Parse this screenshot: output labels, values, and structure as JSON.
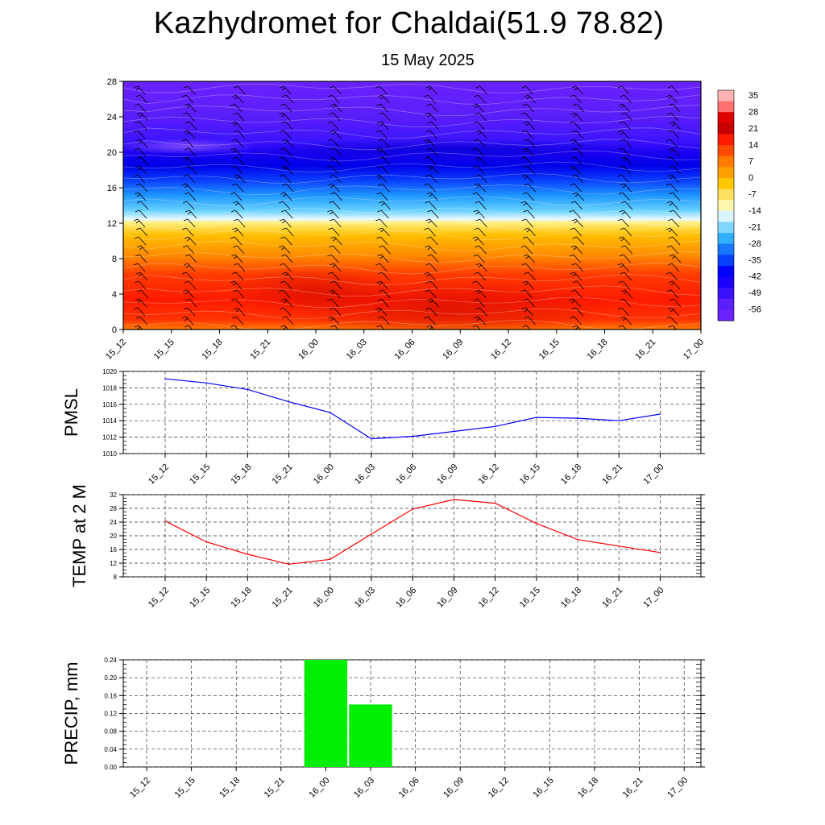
{
  "title": "Kazhydromet for Chaldai(51.9 78.82)",
  "subtitle": "15 May 2025",
  "time_labels": [
    "15_12",
    "15_15",
    "15_18",
    "15_21",
    "16_00",
    "16_03",
    "16_06",
    "16_09",
    "16_12",
    "16_15",
    "16_18",
    "16_21",
    "17_00"
  ],
  "colorbar_labels": [
    "35",
    "28",
    "21",
    "14",
    "7",
    "0",
    "-7",
    "-14",
    "-21",
    "-28",
    "-35",
    "-42",
    "-49",
    "-56"
  ],
  "chart_data": [
    {
      "type": "heatmap",
      "name": "upper-air",
      "y_ticks": [
        "0",
        "4",
        "8",
        "12",
        "16",
        "20",
        "24",
        "28"
      ],
      "ylim": [
        0,
        28
      ],
      "colorbar_ticks": [
        35,
        28,
        21,
        14,
        7,
        0,
        -7,
        -14,
        -21,
        -28,
        -35,
        -42,
        -49,
        -56
      ],
      "vertical_temperature_profile": [
        {
          "level": 0,
          "value": 18
        },
        {
          "level": 2,
          "value": 23
        },
        {
          "level": 4,
          "value": 22
        },
        {
          "level": 7,
          "value": 18
        },
        {
          "level": 10,
          "value": 9
        },
        {
          "level": 12.6,
          "value": -2
        },
        {
          "level": 13.5,
          "value": -10
        },
        {
          "level": 14.5,
          "value": -22
        },
        {
          "level": 16,
          "value": -30
        },
        {
          "level": 17.5,
          "value": -40
        },
        {
          "level": 19,
          "value": -55
        },
        {
          "level": 20,
          "value": -58
        },
        {
          "level": 22,
          "value": -54
        },
        {
          "level": 24,
          "value": -52
        },
        {
          "level": 28,
          "value": -50
        }
      ],
      "colors": {
        "warm": "#ff2a00",
        "neutral": "#fff7b0",
        "cold": "#6a1fff"
      }
    },
    {
      "type": "line",
      "ylabel": "PMSL",
      "categories": [
        "15_12",
        "15_15",
        "15_18",
        "15_21",
        "16_00",
        "16_03",
        "16_06",
        "16_09",
        "16_12",
        "16_15",
        "16_18",
        "16_21",
        "17_00"
      ],
      "values": [
        1019.1,
        1018.6,
        1017.8,
        1016.3,
        1015.0,
        1011.8,
        1012.1,
        1012.7,
        1013.3,
        1014.4,
        1014.3,
        1014.0,
        1014.8
      ],
      "ylim": [
        1010,
        1020
      ],
      "y_ticks": [
        "1010",
        "1012",
        "1014",
        "1016",
        "1018",
        "1020"
      ],
      "color": "#0000ff",
      "grid": true
    },
    {
      "type": "line",
      "ylabel": "TEMP at 2 M",
      "categories": [
        "15_12",
        "15_15",
        "15_18",
        "15_21",
        "16_00",
        "16_03",
        "16_06",
        "16_09",
        "16_12",
        "16_15",
        "16_18",
        "16_21",
        "17_00"
      ],
      "values": [
        24.3,
        18.2,
        14.6,
        11.7,
        13.1,
        20.5,
        27.8,
        30.6,
        29.5,
        23.6,
        18.9,
        17.0,
        15.1
      ],
      "ylim": [
        8,
        32
      ],
      "y_ticks": [
        "8",
        "12",
        "16",
        "20",
        "24",
        "28",
        "32"
      ],
      "color": "#ff0000",
      "grid": true
    },
    {
      "type": "bar",
      "ylabel": "PRECIP, mm",
      "categories": [
        "15_12",
        "15_15",
        "15_18",
        "15_21",
        "16_00",
        "16_03",
        "16_06",
        "16_09",
        "16_12",
        "16_15",
        "16_18",
        "16_21",
        "17_00"
      ],
      "values": [
        0,
        0,
        0,
        0,
        0.24,
        0.14,
        0,
        0,
        0,
        0,
        0,
        0,
        0
      ],
      "ylim": [
        0,
        0.24
      ],
      "y_ticks": [
        "0.00",
        "0.04",
        "0.08",
        "0.12",
        "0.16",
        "0.20",
        "0.24"
      ],
      "color": "#00ee00",
      "grid": true
    }
  ]
}
